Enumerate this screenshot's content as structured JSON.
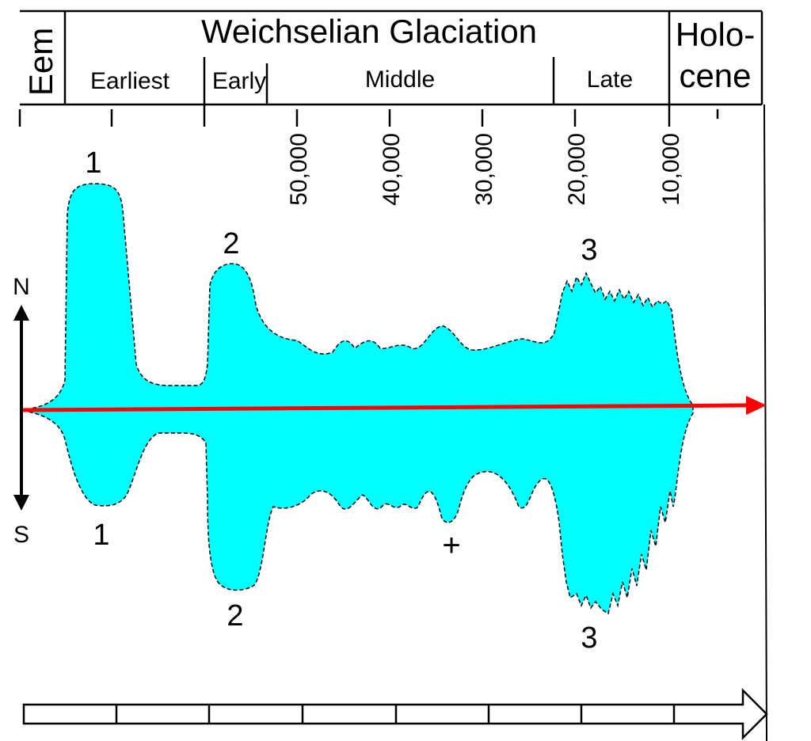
{
  "header": {
    "eem": "Eem",
    "title": "Weichselian Glaciation",
    "holocene_line1": "Holo-",
    "holocene_line2": "cene",
    "subperiods": [
      "Earliest",
      "Early",
      "Middle",
      "Late"
    ]
  },
  "timescale": {
    "tick_labels": [
      "50,000",
      "40,000",
      "30,000",
      "20,000",
      "10,000"
    ]
  },
  "compass": {
    "north": "N",
    "south": "S"
  },
  "peaks": {
    "north": [
      "1",
      "2",
      "3"
    ],
    "south": [
      "1",
      "2",
      "3"
    ]
  },
  "marker": "+",
  "colors": {
    "ice_fill": "#00ffff",
    "time_axis": "#ff0000",
    "outline": "#000000",
    "background": "#ffffff"
  }
}
